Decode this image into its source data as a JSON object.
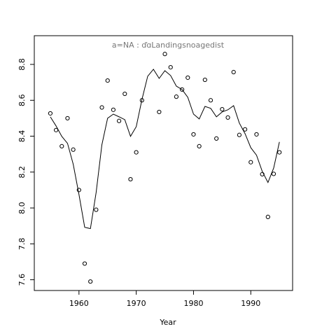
{
  "chart_data": {
    "type": "scatter",
    "title": "a=NA  : ďɑLandingsnoagedist",
    "x_label": "Year",
    "xlim": [
      1952.2,
      1997.3
    ],
    "xticks": [
      1960,
      1970,
      1980,
      1990
    ],
    "ylim": [
      7.54,
      8.96
    ],
    "yticks": [
      7.6,
      7.8,
      {
        "value": 8,
        "label": "8.0"
      },
      8.2,
      8.4,
      8.6,
      8.8
    ],
    "series": [
      {
        "type": "scatter",
        "color": "#000000",
        "x": [
          1955,
          1956,
          1957,
          1958,
          1959,
          1960,
          1961,
          1962,
          1963,
          1964,
          1965,
          1966,
          1967,
          1968,
          1969,
          1970,
          1971,
          1974,
          1975,
          1976,
          1977,
          1978,
          1979,
          1980,
          1981,
          1982,
          1983,
          1984,
          1985,
          1986,
          1987,
          1988,
          1989,
          1990,
          1991,
          1992,
          1993,
          1994,
          1995
        ],
        "values": [
          8.527,
          8.434,
          8.344,
          8.5,
          8.325,
          8.1,
          7.69,
          7.59,
          7.99,
          8.56,
          8.71,
          8.547,
          8.485,
          8.636,
          8.16,
          8.31,
          8.6,
          8.535,
          8.858,
          8.784,
          8.62,
          8.66,
          8.726,
          8.41,
          8.344,
          8.714,
          8.6,
          8.387,
          8.55,
          8.504,
          8.757,
          8.407,
          8.438,
          8.255,
          8.41,
          8.188,
          7.95,
          8.19,
          8.31
        ]
      },
      {
        "type": "line",
        "color": "#000000",
        "x": [
          1955,
          1956,
          1957,
          1958,
          1959,
          1960,
          1961,
          1962,
          1963,
          1964,
          1965,
          1966,
          1967,
          1968,
          1969,
          1970,
          1971,
          1972,
          1973,
          1974,
          1975,
          1976,
          1977,
          1978,
          1979,
          1980,
          1981,
          1982,
          1983,
          1984,
          1985,
          1986,
          1987,
          1988,
          1989,
          1990,
          1991,
          1992,
          1993,
          1994,
          1995
        ],
        "values": [
          8.508,
          8.457,
          8.399,
          8.36,
          8.243,
          8.075,
          7.892,
          7.885,
          8.087,
          8.352,
          8.5,
          8.523,
          8.508,
          8.492,
          8.399,
          8.453,
          8.605,
          8.734,
          8.773,
          8.722,
          8.765,
          8.738,
          8.679,
          8.66,
          8.617,
          8.523,
          8.496,
          8.566,
          8.555,
          8.508,
          8.535,
          8.547,
          8.57,
          8.473,
          8.414,
          8.336,
          8.294,
          8.204,
          8.142,
          8.223,
          8.368
        ]
      }
    ]
  }
}
